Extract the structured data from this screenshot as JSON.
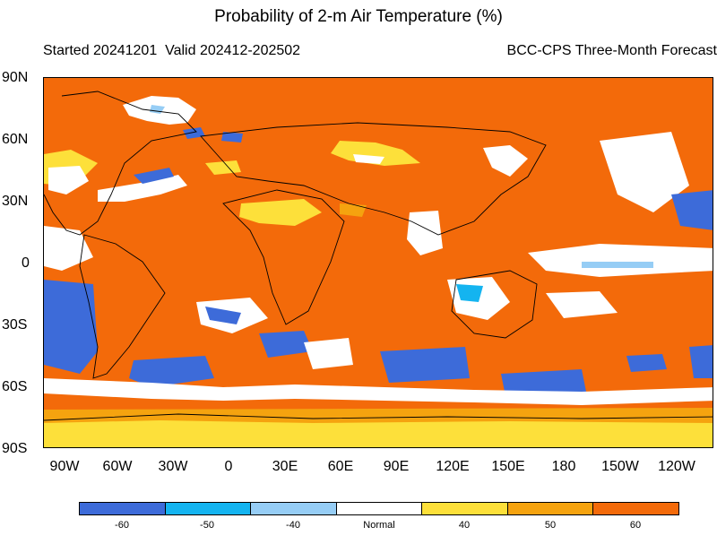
{
  "title": "Probability of 2-m Air Temperature (%)",
  "subtitle_left": "Started 20241201  Valid 202412-202502",
  "subtitle_right": "BCC-CPS Three-Month Forecast",
  "lat_labels": [
    "90N",
    "60N",
    "30N",
    "0",
    "30S",
    "60S",
    "90S"
  ],
  "lon_labels": [
    "90W",
    "60W",
    "30W",
    "0",
    "30E",
    "60E",
    "90E",
    "120E",
    "150E",
    "180",
    "150W",
    "120W"
  ],
  "legend": {
    "categories": [
      {
        "label": "-60",
        "color": "#3d6bd9"
      },
      {
        "label": "-50",
        "color": "#14b4f0"
      },
      {
        "label": "-40",
        "color": "#96cdf5"
      },
      {
        "label": "Normal",
        "color": "#ffffff"
      },
      {
        "label": "40",
        "color": "#fde03a"
      },
      {
        "label": "50",
        "color": "#f5a30f"
      },
      {
        "label": "60",
        "color": "#f36a0a"
      }
    ]
  },
  "colors": {
    "above_60": "#f36a0a",
    "above_50": "#f5a30f",
    "above_40": "#fde03a",
    "normal": "#ffffff",
    "below_40": "#96cdf5",
    "below_50": "#14b4f0",
    "below_60": "#3d6bd9"
  }
}
